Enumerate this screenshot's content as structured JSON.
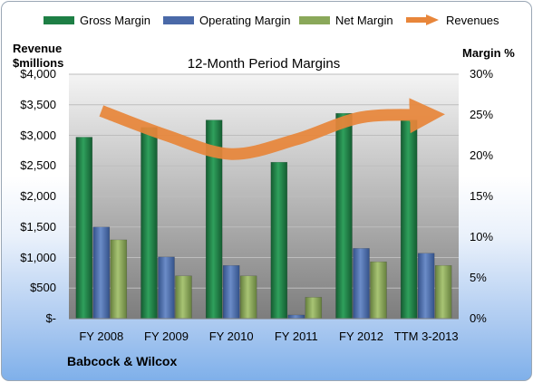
{
  "colors": {
    "gross": "#1e7f45",
    "operating": "#4a69a8",
    "net": "#8aa85a",
    "revenue": "#e8863a",
    "plot_bg_top": "#f4f4f4",
    "plot_bg_bottom": "#7d7d7d"
  },
  "left_axis_title": {
    "line1": "Revenue",
    "line2": "$millions"
  },
  "right_axis_title": "Margin %",
  "footer": "Babcock & Wilcox",
  "chart_data": {
    "type": "bar",
    "title": "12-Month Period Margins",
    "categories": [
      "FY 2008",
      "FY 2009",
      "FY 2010",
      "FY 2011",
      "FY 2012",
      "TTM 3-2013"
    ],
    "series": [
      {
        "name": "Gross Margin",
        "type": "bar",
        "axis": "left",
        "color": "#1e7f45",
        "values": [
          2970,
          3130,
          3250,
          2560,
          3360,
          3250
        ]
      },
      {
        "name": "Operating Margin",
        "type": "bar",
        "axis": "left",
        "color": "#4a69a8",
        "values": [
          1500,
          1010,
          870,
          60,
          1150,
          1070
        ]
      },
      {
        "name": "Net Margin",
        "type": "bar",
        "axis": "left",
        "color": "#8aa85a",
        "values": [
          1290,
          700,
          700,
          350,
          930,
          870
        ]
      },
      {
        "name": "Revenues",
        "type": "line",
        "axis": "right",
        "color": "#e8863a",
        "values": [
          25.5,
          22.5,
          20.2,
          22.0,
          24.7,
          25.0
        ]
      }
    ],
    "y_left": {
      "min": 0,
      "max": 4000,
      "ticks": [
        "$-",
        "$500",
        "$1,000",
        "$1,500",
        "$2,000",
        "$2,500",
        "$3,000",
        "$3,500",
        "$4,000"
      ]
    },
    "y_right": {
      "min": 0,
      "max": 30,
      "ticks": [
        "0%",
        "5%",
        "10%",
        "15%",
        "20%",
        "25%",
        "30%"
      ]
    },
    "legend_position": "top",
    "grid": true
  }
}
